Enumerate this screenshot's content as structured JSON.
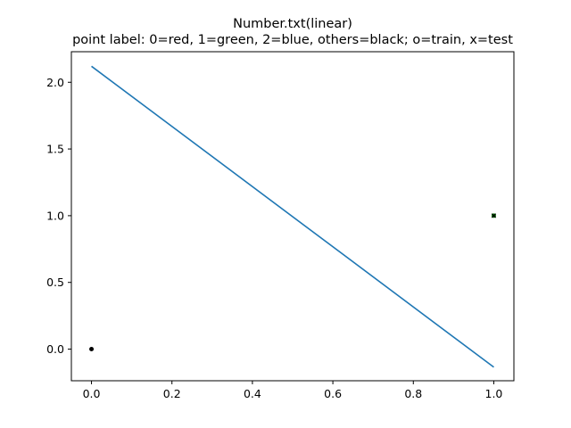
{
  "chart_data": {
    "type": "line",
    "title": "Number.txt(linear)",
    "subtitle": "point label: 0=red, 1=green, 2=blue, others=black; o=train, x=test",
    "xlabel": "",
    "ylabel": "",
    "xlim": [
      -0.05,
      1.05
    ],
    "ylim": [
      -0.237,
      2.229
    ],
    "grid": false,
    "x_ticks": [
      0.0,
      0.2,
      0.4,
      0.6,
      0.8,
      1.0
    ],
    "x_tick_labels": [
      "0.0",
      "0.2",
      "0.4",
      "0.6",
      "0.8",
      "1.0"
    ],
    "y_ticks": [
      0.0,
      0.5,
      1.0,
      1.5,
      2.0
    ],
    "y_tick_labels": [
      "0.0",
      "0.5",
      "1.0",
      "1.5",
      "2.0"
    ],
    "line": {
      "color": "#1f77b4",
      "x": [
        0.0,
        1.0
      ],
      "y": [
        2.12,
        -0.135
      ]
    },
    "points": [
      {
        "x": 0.0,
        "y": 0.0,
        "label_class": "others",
        "color": "#000000",
        "marker": "o",
        "set": "train"
      },
      {
        "x": 1.0,
        "y": 1.0,
        "label_class": "1",
        "color": "#008000",
        "marker": "o",
        "set": "train"
      },
      {
        "x": 1.0,
        "y": 1.0,
        "label_class": "others",
        "color": "#000000",
        "marker": "x",
        "set": "test"
      }
    ]
  }
}
